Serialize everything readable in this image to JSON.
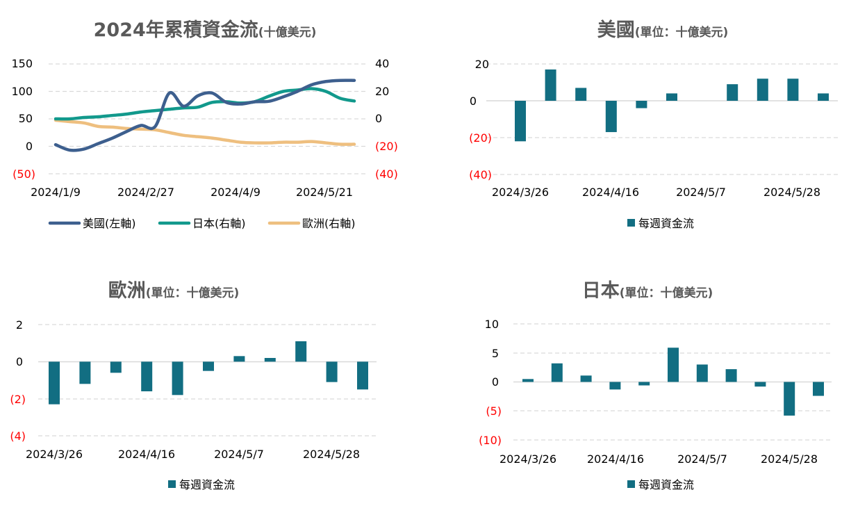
{
  "colors": {
    "bar": "#126E82",
    "us_line": "#3D5F8E",
    "jp_line": "#12998C",
    "eu_line": "#EEBF7F",
    "negative_tick": "#FF0000",
    "grid": "#D9D9D9",
    "text": "#595959"
  },
  "chart_data": [
    {
      "id": "cumulative",
      "type": "line",
      "title": "2024年累積資金流",
      "subtitle": "(十億美元)",
      "x": [
        "2024/1/9",
        "2024/1/16",
        "2024/1/23",
        "2024/1/30",
        "2024/2/6",
        "2024/2/13",
        "2024/2/20",
        "2024/2/27",
        "2024/3/5",
        "2024/3/12",
        "2024/3/19",
        "2024/3/26",
        "2024/4/2",
        "2024/4/9",
        "2024/4/16",
        "2024/4/23",
        "2024/4/30",
        "2024/5/7",
        "2024/5/14",
        "2024/5/21",
        "2024/5/28",
        "2024/6/4"
      ],
      "x_tick_labels": [
        "2024/1/9",
        "2024/2/27",
        "2024/4/9",
        "2024/5/21"
      ],
      "y_left_ticks": [
        "150",
        "100",
        "50",
        "0",
        "(50)"
      ],
      "y_right_ticks": [
        "40",
        "20",
        "0",
        "(20)",
        "(40)"
      ],
      "ylim_left": [
        -50,
        150
      ],
      "ylim_right": [
        -40,
        40
      ],
      "grid": true,
      "legend_position": "bottom",
      "series": [
        {
          "name": "美國(左軸)",
          "axis": "left",
          "values": [
            3,
            -7,
            -5,
            5,
            15,
            27,
            38,
            36,
            97,
            73,
            92,
            97,
            80,
            77,
            81,
            82,
            90,
            100,
            112,
            118,
            120,
            120
          ]
        },
        {
          "name": "日本(右軸)",
          "axis": "right",
          "values": [
            0,
            0,
            1,
            1.5,
            2.5,
            3.5,
            5,
            6,
            7,
            8,
            8.5,
            12,
            12.5,
            11.5,
            12.5,
            16.5,
            20,
            21,
            22,
            20,
            15,
            13
          ]
        },
        {
          "name": "歐洲(右軸)",
          "axis": "right",
          "values": [
            -1,
            -2,
            -3,
            -5.5,
            -6,
            -7,
            -7.5,
            -8,
            -10,
            -12,
            -13,
            -14,
            -15.5,
            -17,
            -17.5,
            -17.5,
            -17,
            -17,
            -16.5,
            -17.5,
            -18.5,
            -18.5
          ]
        }
      ]
    },
    {
      "id": "us_weekly",
      "type": "bar",
      "title": "美國",
      "subtitle": "(單位：十億美元)",
      "categories": [
        "2024/3/26",
        "2024/4/2",
        "2024/4/9",
        "2024/4/16",
        "2024/4/23",
        "2024/4/30",
        "2024/5/7",
        "2024/5/14",
        "2024/5/21",
        "2024/5/28",
        "2024/6/4"
      ],
      "x_tick_labels": [
        "2024/3/26",
        "2024/4/16",
        "2024/5/7",
        "2024/5/28"
      ],
      "values": [
        -22,
        17,
        7,
        -17,
        -4,
        4,
        0,
        9,
        12,
        12,
        4
      ],
      "y_ticks": [
        "20",
        "0",
        "(20)",
        "(40)"
      ],
      "ylim": [
        -40,
        20
      ],
      "grid": true,
      "legend": [
        "每週資金流"
      ],
      "legend_position": "bottom"
    },
    {
      "id": "eu_weekly",
      "type": "bar",
      "title": "歐洲",
      "subtitle": "(單位：十億美元)",
      "categories": [
        "2024/3/26",
        "2024/4/2",
        "2024/4/9",
        "2024/4/16",
        "2024/4/23",
        "2024/4/30",
        "2024/5/7",
        "2024/5/14",
        "2024/5/21",
        "2024/5/28",
        "2024/6/4"
      ],
      "x_tick_labels": [
        "2024/3/26",
        "2024/4/16",
        "2024/5/7",
        "2024/5/28"
      ],
      "values": [
        -2.3,
        -1.2,
        -0.6,
        -1.6,
        -1.8,
        -0.5,
        0.3,
        0.2,
        1.1,
        -1.1,
        -1.5
      ],
      "y_ticks": [
        "2",
        "0",
        "(2)",
        "(4)"
      ],
      "ylim": [
        -4,
        2
      ],
      "grid": true,
      "legend": [
        "每週資金流"
      ],
      "legend_position": "bottom"
    },
    {
      "id": "jp_weekly",
      "type": "bar",
      "title": "日本",
      "subtitle": "(單位：十億美元)",
      "categories": [
        "2024/3/26",
        "2024/4/2",
        "2024/4/9",
        "2024/4/16",
        "2024/4/23",
        "2024/4/30",
        "2024/5/7",
        "2024/5/14",
        "2024/5/21",
        "2024/5/28",
        "2024/6/4"
      ],
      "x_tick_labels": [
        "2024/3/26",
        "2024/4/16",
        "2024/5/7",
        "2024/5/28"
      ],
      "values": [
        0.5,
        3.2,
        1.1,
        -1.3,
        -0.6,
        5.9,
        3.0,
        2.2,
        -0.8,
        -5.8,
        -2.4
      ],
      "y_ticks": [
        "10",
        "5",
        "0",
        "(5)",
        "(10)"
      ],
      "ylim": [
        -10,
        10
      ],
      "grid": true,
      "legend": [
        "每週資金流"
      ],
      "legend_position": "bottom"
    }
  ]
}
